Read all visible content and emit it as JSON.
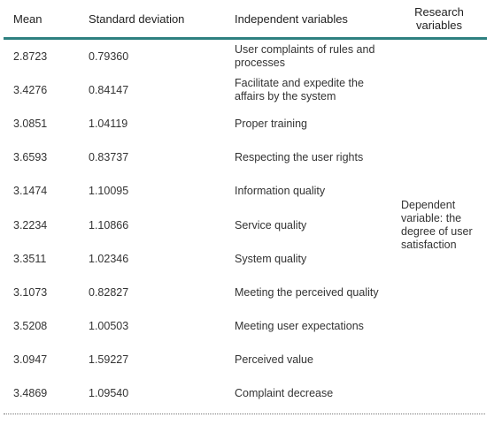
{
  "table": {
    "header": [
      "Mean",
      "Standard deviation",
      "Independent variables",
      "Research variables"
    ],
    "rows": [
      [
        "2.8723",
        "0.79360",
        "User complaints of rules and processes"
      ],
      [
        "3.4276",
        "0.84147",
        "Facilitate and expedite the affairs by the system"
      ],
      [
        "3.0851",
        "1.04119",
        "Proper training"
      ],
      [
        "3.6593",
        "0.83737",
        "Respecting the user rights"
      ],
      [
        "3.1474",
        "1.10095",
        "Information quality"
      ],
      [
        "3.2234",
        "1.10866",
        "Service quality"
      ],
      [
        "3.3511",
        "1.02346",
        "System quality"
      ],
      [
        "3.1073",
        "0.82827",
        "Meeting the perceived quality"
      ],
      [
        "3.5208",
        "1.00503",
        "Meeting user expectations"
      ],
      [
        "3.0947",
        "1.59227",
        "Perceived value"
      ],
      [
        "3.4869",
        "1.09540",
        "Complaint decrease"
      ]
    ],
    "research_variable": "Dependent variable:  the degree of user satisfaction"
  }
}
